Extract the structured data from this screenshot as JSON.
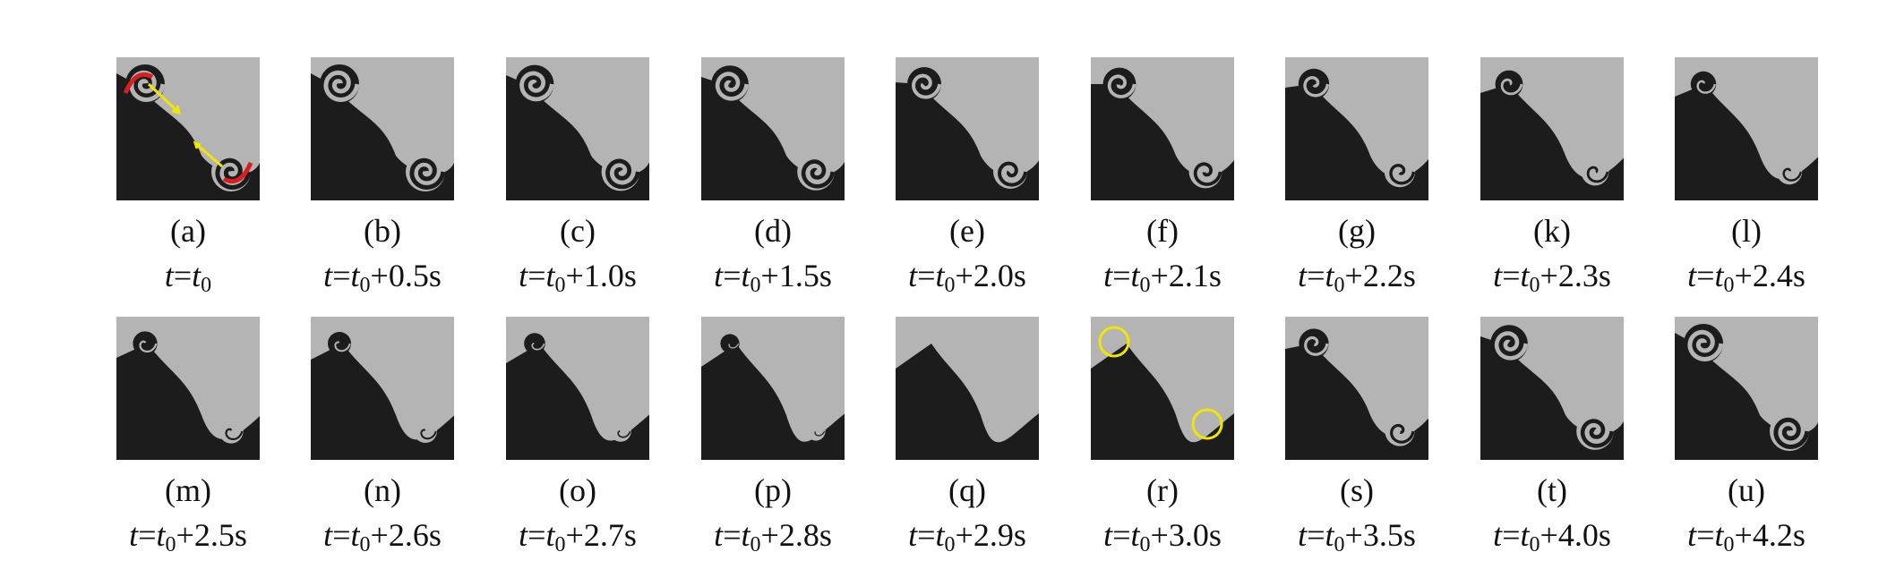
{
  "time_prefix": "t",
  "time_equals": "=",
  "time_sub": "0",
  "panels": [
    {
      "label": "(a)",
      "offset": "",
      "vortex": 1.0,
      "annotate": "arrows"
    },
    {
      "label": "(b)",
      "offset": "+0.5s",
      "vortex": 1.0,
      "annotate": ""
    },
    {
      "label": "(c)",
      "offset": "+1.0s",
      "vortex": 0.95,
      "annotate": ""
    },
    {
      "label": "(d)",
      "offset": "+1.5s",
      "vortex": 0.9,
      "annotate": ""
    },
    {
      "label": "(e)",
      "offset": "+2.0s",
      "vortex": 0.75,
      "annotate": ""
    },
    {
      "label": "(f)",
      "offset": "+2.1s",
      "vortex": 0.7,
      "annotate": ""
    },
    {
      "label": "(g)",
      "offset": "+2.2s",
      "vortex": 0.6,
      "annotate": ""
    },
    {
      "label": "(k)",
      "offset": "+2.3s",
      "vortex": 0.45,
      "annotate": ""
    },
    {
      "label": "(l)",
      "offset": "+2.4s",
      "vortex": 0.35,
      "annotate": ""
    },
    {
      "label": "(m)",
      "offset": "+2.5s",
      "vortex": 0.3,
      "annotate": ""
    },
    {
      "label": "(n)",
      "offset": "+2.6s",
      "vortex": 0.25,
      "annotate": ""
    },
    {
      "label": "(o)",
      "offset": "+2.7s",
      "vortex": 0.15,
      "annotate": ""
    },
    {
      "label": "(p)",
      "offset": "+2.8s",
      "vortex": 0.05,
      "annotate": ""
    },
    {
      "label": "(q)",
      "offset": "+2.9s",
      "vortex": 0.0,
      "annotate": ""
    },
    {
      "label": "(r)",
      "offset": "+3.0s",
      "vortex": 0.0,
      "annotate": "circles"
    },
    {
      "label": "(s)",
      "offset": "+3.5s",
      "vortex": 0.55,
      "annotate": ""
    },
    {
      "label": "(t)",
      "offset": "+4.0s",
      "vortex": 0.9,
      "annotate": ""
    },
    {
      "label": "(u)",
      "offset": "+4.2s",
      "vortex": 1.0,
      "annotate": ""
    }
  ],
  "colors": {
    "light_fluid": "#b4b4b4",
    "dark_fluid": "#1c1c1c",
    "arrow_red": "#d81e1e",
    "arrow_yellow": "#f2e600",
    "circle_yellow": "#f2e600"
  }
}
